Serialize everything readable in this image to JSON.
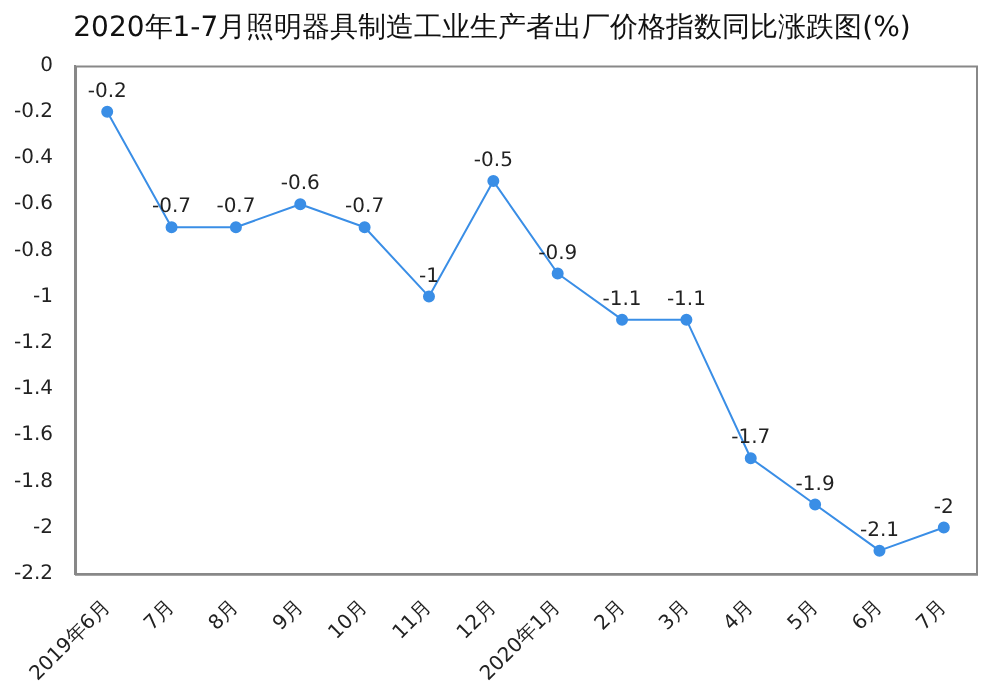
{
  "chart_data": {
    "type": "line",
    "title": "2020年1-7月照明器具制造工业生产者出厂价格指数同比涨跌图(%)",
    "categories": [
      "2019年6月",
      "7月",
      "8月",
      "9月",
      "10月",
      "11月",
      "12月",
      "2020年1月",
      "2月",
      "3月",
      "4月",
      "5月",
      "6月",
      "7月"
    ],
    "series": [
      {
        "color": "#3a8ee6",
        "values": [
          -0.2,
          -0.7,
          -0.7,
          -0.6,
          -0.7,
          -1,
          -0.5,
          -0.9,
          -1.1,
          -1.1,
          -1.7,
          -1.9,
          -2.1,
          -2
        ]
      }
    ],
    "ylim": [
      -2.2,
      0
    ],
    "yticks": [
      0,
      -0.2,
      -0.4,
      -0.6,
      -0.8,
      -1,
      -1.2,
      -1.4,
      -1.6,
      -1.8,
      -2,
      -2.2
    ],
    "grid": false,
    "legend": false,
    "marker": "circle",
    "line_style": "solid",
    "data_labels": true
  }
}
